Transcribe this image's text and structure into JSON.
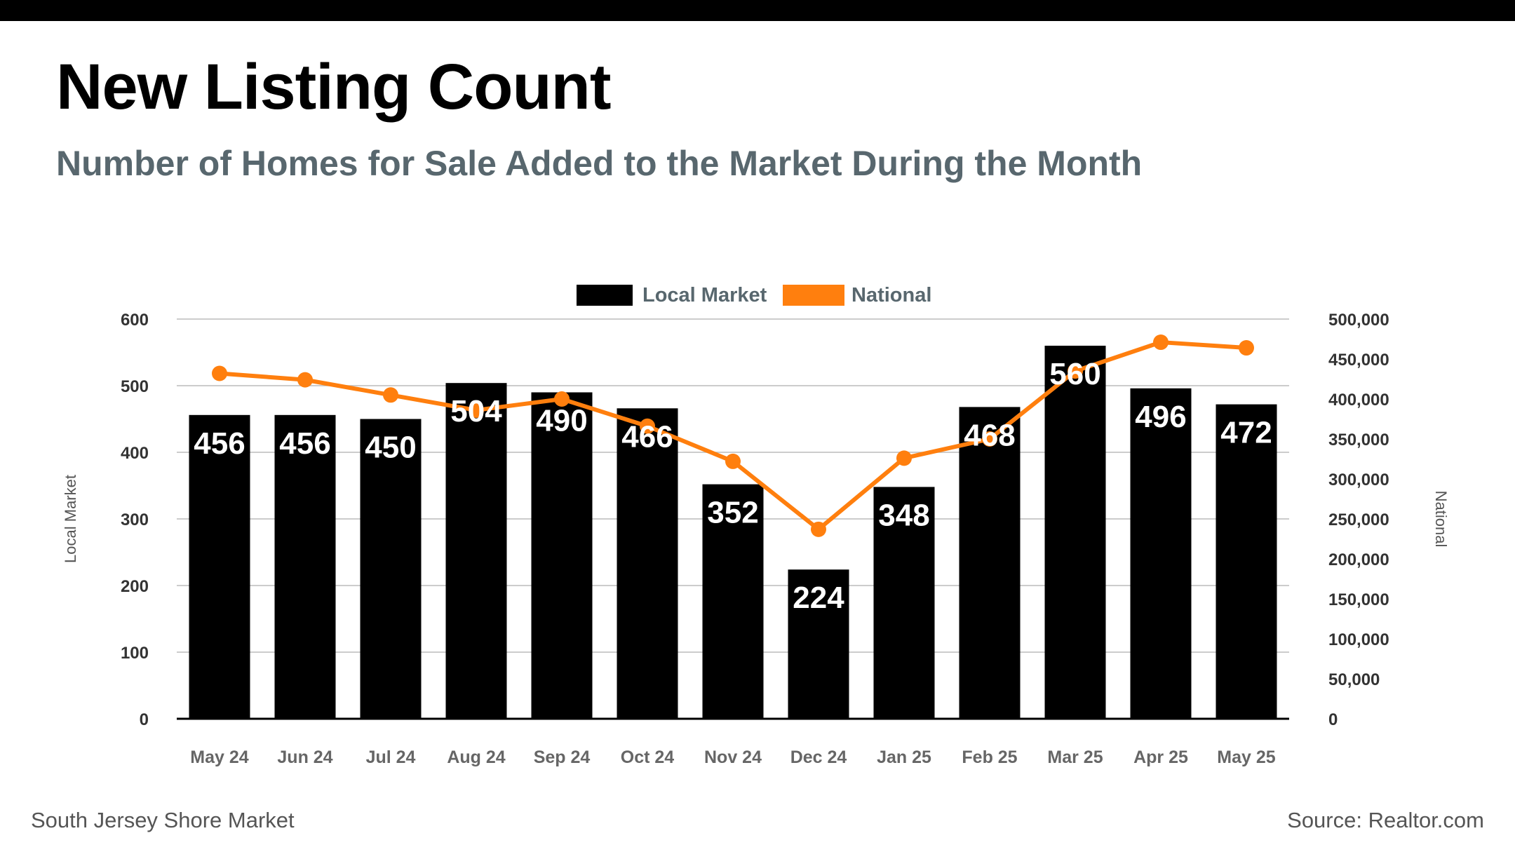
{
  "header": {
    "title": "New Listing Count",
    "subtitle": "Number of Homes for Sale Added to the Market During the Month"
  },
  "footer": {
    "left": "South Jersey Shore Market",
    "right": "Source: Realtor.com"
  },
  "colors": {
    "bar": "#000000",
    "line": "#ff7f0e",
    "grid": "#bbbbbb",
    "title": "#000000",
    "subtitle": "#58676e"
  },
  "chart_data": {
    "type": "bar",
    "categories": [
      "May 24",
      "Jun 24",
      "Jul 24",
      "Aug 24",
      "Sep 24",
      "Oct 24",
      "Nov 24",
      "Dec 24",
      "Jan 25",
      "Feb 25",
      "Mar 25",
      "Apr 25",
      "May 25"
    ],
    "series": [
      {
        "name": "Local Market",
        "type": "bar",
        "axis": "left",
        "values": [
          456,
          456,
          450,
          504,
          490,
          466,
          352,
          224,
          348,
          468,
          560,
          496,
          472
        ]
      },
      {
        "name": "National",
        "type": "line",
        "axis": "right",
        "values": [
          432000,
          424000,
          405000,
          386000,
          400000,
          366000,
          322000,
          237000,
          326000,
          350000,
          435000,
          471000,
          464000
        ]
      }
    ],
    "ylabel": "Local Market",
    "y2label": "National",
    "ylim": [
      0,
      600
    ],
    "y2lim": [
      0,
      500000
    ],
    "yticks": [
      "0",
      "100",
      "200",
      "300",
      "400",
      "500",
      "600"
    ],
    "y2ticks": [
      "0",
      "50,000",
      "100,000",
      "150,000",
      "200,000",
      "250,000",
      "300,000",
      "350,000",
      "400,000",
      "450,000",
      "500,000"
    ],
    "legend": [
      "Local Market",
      "National"
    ],
    "legend_position": "top-center",
    "grid": true
  }
}
